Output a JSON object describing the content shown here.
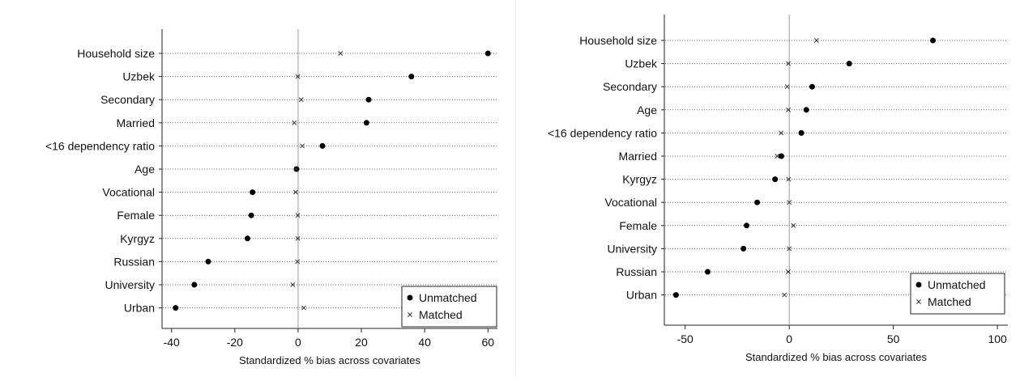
{
  "chart_data": [
    {
      "type": "scatter",
      "xlabel": "Standardized % bias across covariates",
      "xlim": [
        -43,
        63
      ],
      "xticks": [
        -40,
        -20,
        0,
        20,
        40,
        60
      ],
      "categories": [
        "Household size",
        "Uzbek",
        "Secondary",
        "Married",
        "<16 dependency ratio",
        "Age",
        "Vocational",
        "Female",
        "Kyrgyz",
        "Russian",
        "University",
        "Urban"
      ],
      "series": [
        {
          "name": "Unmatched",
          "marker": "dot",
          "values": [
            60.0,
            35.8,
            22.3,
            21.6,
            7.7,
            -0.5,
            -14.4,
            -14.8,
            -16.0,
            -28.4,
            -32.8,
            -38.7
          ]
        },
        {
          "name": "Matched",
          "marker": "x",
          "values": [
            13.4,
            -0.1,
            1.0,
            -1.2,
            1.3,
            -0.6,
            -0.8,
            -0.1,
            -0.1,
            -0.2,
            -1.7,
            1.8
          ]
        }
      ],
      "legend": {
        "position": "bottom-right",
        "entries": [
          "Unmatched",
          "Matched"
        ]
      },
      "grid": false,
      "zero_line": true
    },
    {
      "type": "scatter",
      "xlabel": "Standardized % bias across covariates",
      "xlim": [
        -60,
        105
      ],
      "xticks": [
        -50,
        0,
        50,
        100
      ],
      "categories": [
        "Household size",
        "Uzbek",
        "Secondary",
        "Age",
        "<16 dependency ratio",
        "Married",
        "Kyrgyz",
        "Vocational",
        "Female",
        "University",
        "Russian",
        "Urban"
      ],
      "series": [
        {
          "name": "Unmatched",
          "marker": "dot",
          "values": [
            69.0,
            28.8,
            11.0,
            8.2,
            5.8,
            -3.8,
            -6.8,
            -15.4,
            -20.5,
            -22.0,
            -39.2,
            -54.4
          ]
        },
        {
          "name": "Matched",
          "marker": "x",
          "values": [
            13.1,
            -0.4,
            -1.0,
            -0.4,
            -3.9,
            -5.8,
            -0.3,
            0.0,
            2.0,
            0.0,
            -0.5,
            -2.3
          ]
        }
      ],
      "legend": {
        "position": "bottom-right",
        "entries": [
          "Unmatched",
          "Matched"
        ]
      },
      "grid": false,
      "zero_line": true
    }
  ]
}
